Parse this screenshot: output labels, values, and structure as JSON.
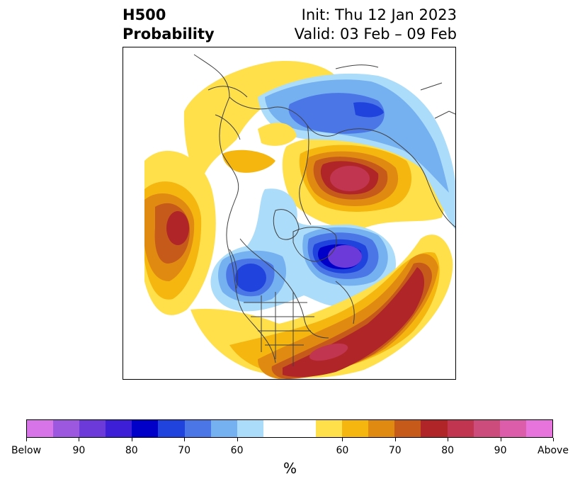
{
  "title": {
    "variable": "H500",
    "product": "Probability",
    "init": "Init: Thu 12 Jan 2023",
    "valid": "Valid: 03 Feb – 09 Feb"
  },
  "colorbar": {
    "unit": "%",
    "below_colors": [
      "#d674e8",
      "#9d58e0",
      "#6c3ad9",
      "#3c1fd6",
      "#0000c8",
      "#2042dd",
      "#4a76e6",
      "#75b0f0",
      "#abdcfa"
    ],
    "neutral_color": "#ffffff",
    "above_colors": [
      "#ffe04b",
      "#f4b60f",
      "#e08a12",
      "#c65a1a",
      "#b02528",
      "#c23550",
      "#cc4c7c",
      "#dc5eaa",
      "#e774dc"
    ],
    "tick_labels": [
      "Below",
      "90",
      "80",
      "70",
      "60",
      "60",
      "70",
      "80",
      "90",
      "Above"
    ]
  },
  "map": {
    "projection": "north-polar-stereographic",
    "anomalies": [
      {
        "region": "North Pacific",
        "sign": "above",
        "max_category": "80"
      },
      {
        "region": "Northern Russia / Barents-Kara",
        "sign": "above",
        "max_category": "90"
      },
      {
        "region": "Western Europe / North Atlantic east",
        "sign": "above",
        "max_category": "60"
      },
      {
        "region": "Alaska Gulf / West Canada",
        "sign": "below",
        "max_category": "80"
      },
      {
        "region": "Hudson Bay / Greenland west",
        "sign": "below",
        "max_category": "90"
      },
      {
        "region": "Scandinavia to Central Siberia",
        "sign": "below",
        "max_category": "70"
      },
      {
        "region": "Eastern US / Western Atlantic",
        "sign": "above",
        "max_category": "80"
      },
      {
        "region": "Central Atlantic",
        "sign": "above",
        "max_category": "80"
      }
    ]
  }
}
